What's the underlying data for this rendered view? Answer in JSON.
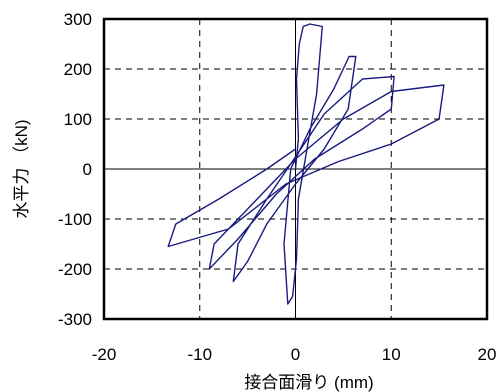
{
  "chart_data": {
    "type": "line",
    "title": "",
    "xlabel": "接合面滑り (mm)",
    "ylabel": "水平力 （kN)",
    "xlim": [
      -20,
      20
    ],
    "ylim": [
      -300,
      300
    ],
    "x_ticks": [
      "-20",
      "-10",
      "0",
      "10",
      "20"
    ],
    "y_ticks": [
      "300",
      "200",
      "100",
      "0",
      "-100",
      "-200",
      "-300"
    ],
    "grid": "dashed",
    "line_color": "#1a1a80",
    "series": [
      {
        "points": [
          [
            0,
            0
          ],
          [
            0.3,
            60
          ],
          [
            0.1,
            180
          ],
          [
            0.4,
            250
          ],
          [
            0.8,
            285
          ],
          [
            1.5,
            290
          ],
          [
            2.8,
            285
          ],
          [
            2.2,
            150
          ],
          [
            1.2,
            40
          ],
          [
            0.3,
            -60
          ],
          [
            0.1,
            -180
          ],
          [
            -0.3,
            -255
          ],
          [
            -0.8,
            -270
          ],
          [
            -1.2,
            -150
          ],
          [
            -0.5,
            0
          ],
          [
            1.5,
            80
          ],
          [
            4.0,
            160
          ],
          [
            5.6,
            225
          ],
          [
            6.3,
            225
          ],
          [
            5.5,
            120
          ],
          [
            3.0,
            40
          ],
          [
            0,
            -30
          ],
          [
            -3.0,
            -110
          ],
          [
            -5.0,
            -185
          ],
          [
            -6.5,
            -225
          ],
          [
            -6.0,
            -150
          ],
          [
            -3.0,
            -60
          ],
          [
            -0.5,
            10
          ],
          [
            3.0,
            110
          ],
          [
            7.0,
            180
          ],
          [
            10.3,
            185
          ],
          [
            10.0,
            120
          ],
          [
            7.0,
            80
          ],
          [
            2.0,
            20
          ],
          [
            -2.0,
            -50
          ],
          [
            -6.0,
            -140
          ],
          [
            -9.0,
            -200
          ],
          [
            -8.5,
            -150
          ],
          [
            -4.0,
            -60
          ],
          [
            0,
            20
          ],
          [
            5.0,
            100
          ],
          [
            10.0,
            155
          ],
          [
            15.5,
            168
          ],
          [
            15.0,
            100
          ],
          [
            10.0,
            50
          ],
          [
            4.5,
            15
          ],
          [
            -1.0,
            -30
          ],
          [
            -7.0,
            -120
          ],
          [
            -13.3,
            -155
          ],
          [
            -12.5,
            -110
          ],
          [
            -8.0,
            -60
          ],
          [
            -3.0,
            0
          ],
          [
            0,
            40
          ]
        ]
      }
    ]
  }
}
